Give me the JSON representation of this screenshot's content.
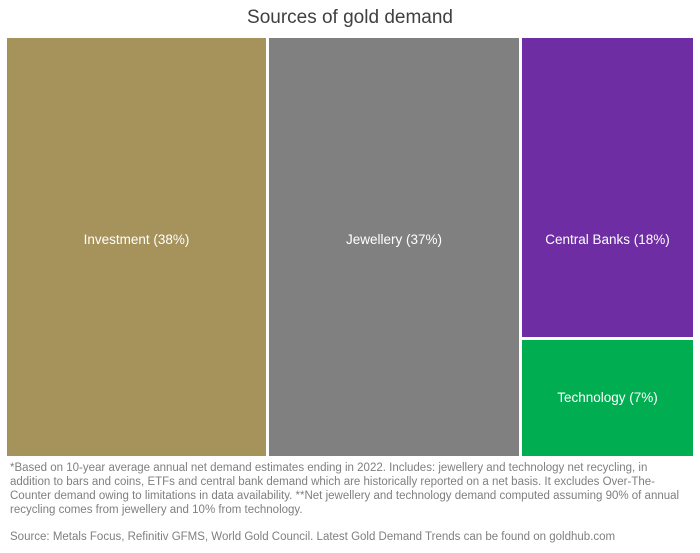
{
  "title": "Sources of gold demand",
  "chart_data": {
    "type": "treemap",
    "title": "Sources of gold demand",
    "unit": "percent",
    "segments": [
      {
        "label": "Investment",
        "value": 38,
        "display": "Investment (38%)",
        "color": "#a6925b"
      },
      {
        "label": "Jewellery",
        "value": 37,
        "display": "Jewellery (37%)",
        "color": "#808080"
      },
      {
        "label": "Central Banks",
        "value": 18,
        "display": "Central Banks (18%)",
        "color": "#6e2da3"
      },
      {
        "label": "Technology",
        "value": 7,
        "display": "Technology (7%)",
        "color": "#00ad50"
      }
    ],
    "layout": "single-row-treemap, Investment and Jewellery full height, Central Banks stacked above Technology in right column",
    "label_color": "#ffffff"
  },
  "footnote": "*Based on 10-year average annual net demand estimates ending in 2022.  Includes: jewellery and technology net recycling, in addition to bars and coins, ETFs and central bank demand which are historically reported on a net basis. It excludes Over-The-Counter demand owing to limitations in data availability.  **Net jewellery and technology demand computed assuming 90% of annual recycling comes from jewellery and 10% from technology.",
  "source": "Source: Metals Focus, Refinitiv GFMS, World Gold Council.  Latest Gold Demand Trends can be found on goldhub.com"
}
